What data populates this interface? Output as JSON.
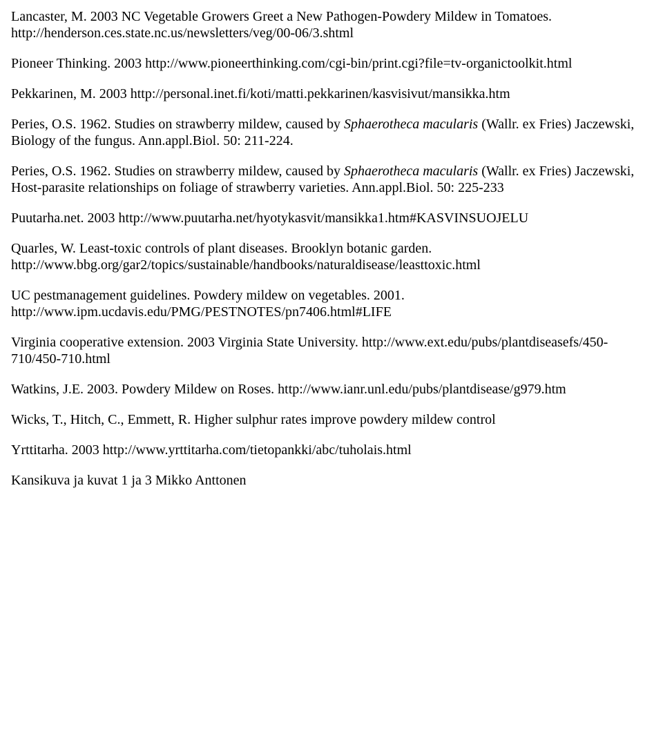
{
  "refs": [
    {
      "parts": [
        {
          "text": "Lancaster, M. 2003 NC Vegetable Growers Greet a New Pathogen-Powdery Mildew in Tomatoes. http://henderson.ces.state.nc.us/newsletters/veg/00-06/3.shtml",
          "italic": false
        }
      ]
    },
    {
      "parts": [
        {
          "text": "Pioneer Thinking. 2003 http://www.pioneerthinking.com/cgi-bin/print.cgi?file=tv-organictoolkit.html",
          "italic": false
        }
      ]
    },
    {
      "parts": [
        {
          "text": "Pekkarinen, M. 2003 http://personal.inet.fi/koti/matti.pekkarinen/kasvisivut/mansikka.htm",
          "italic": false
        }
      ]
    },
    {
      "parts": [
        {
          "text": "Peries, O.S. 1962. Studies on strawberry mildew, caused by ",
          "italic": false
        },
        {
          "text": "Sphaerotheca macularis",
          "italic": true
        },
        {
          "text": " (Wallr. ex Fries) Jaczewski, Biology of the fungus. Ann.appl.Biol. 50: 211-224.",
          "italic": false
        }
      ]
    },
    {
      "parts": [
        {
          "text": "Peries, O.S. 1962. Studies on strawberry mildew, caused by ",
          "italic": false
        },
        {
          "text": "Sphaerotheca macularis",
          "italic": true
        },
        {
          "text": " (Wallr. ex Fries) Jaczewski, Host-parasite relationships on foliage of strawberry varieties. Ann.appl.Biol. 50: 225-233",
          "italic": false
        }
      ]
    },
    {
      "parts": [
        {
          "text": "Puutarha.net. 2003 http://www.puutarha.net/hyotykasvit/mansikka1.htm#KASVINSUOJELU",
          "italic": false
        }
      ]
    },
    {
      "parts": [
        {
          "text": "Quarles, W. Least-toxic controls of plant diseases. Brooklyn botanic garden. http://www.bbg.org/gar2/topics/sustainable/handbooks/naturaldisease/leasttoxic.html",
          "italic": false
        }
      ]
    },
    {
      "parts": [
        {
          "text": "UC pestmanagement guidelines. Powdery mildew on vegetables. 2001. http://www.ipm.ucdavis.edu/PMG/PESTNOTES/pn7406.html#LIFE",
          "italic": false
        }
      ]
    },
    {
      "parts": [
        {
          "text": "Virginia cooperative extension. 2003 Virginia State University. http://www.ext.edu/pubs/plantdiseasefs/450-710/450-710.html",
          "italic": false
        }
      ]
    },
    {
      "parts": [
        {
          "text": "Watkins, J.E. 2003. Powdery Mildew on Roses. http://www.ianr.unl.edu/pubs/plantdisease/g979.htm",
          "italic": false
        }
      ]
    },
    {
      "parts": [
        {
          "text": "Wicks, T., Hitch, C., Emmett, R. Higher sulphur rates improve powdery mildew control",
          "italic": false
        }
      ]
    },
    {
      "parts": [
        {
          "text": "Yrttitarha. 2003 http://www.yrttitarha.com/tietopankki/abc/tuholais.html",
          "italic": false
        }
      ]
    },
    {
      "parts": [
        {
          "text": "Kansikuva ja kuvat 1 ja 3 Mikko Anttonen",
          "italic": false
        }
      ]
    }
  ]
}
